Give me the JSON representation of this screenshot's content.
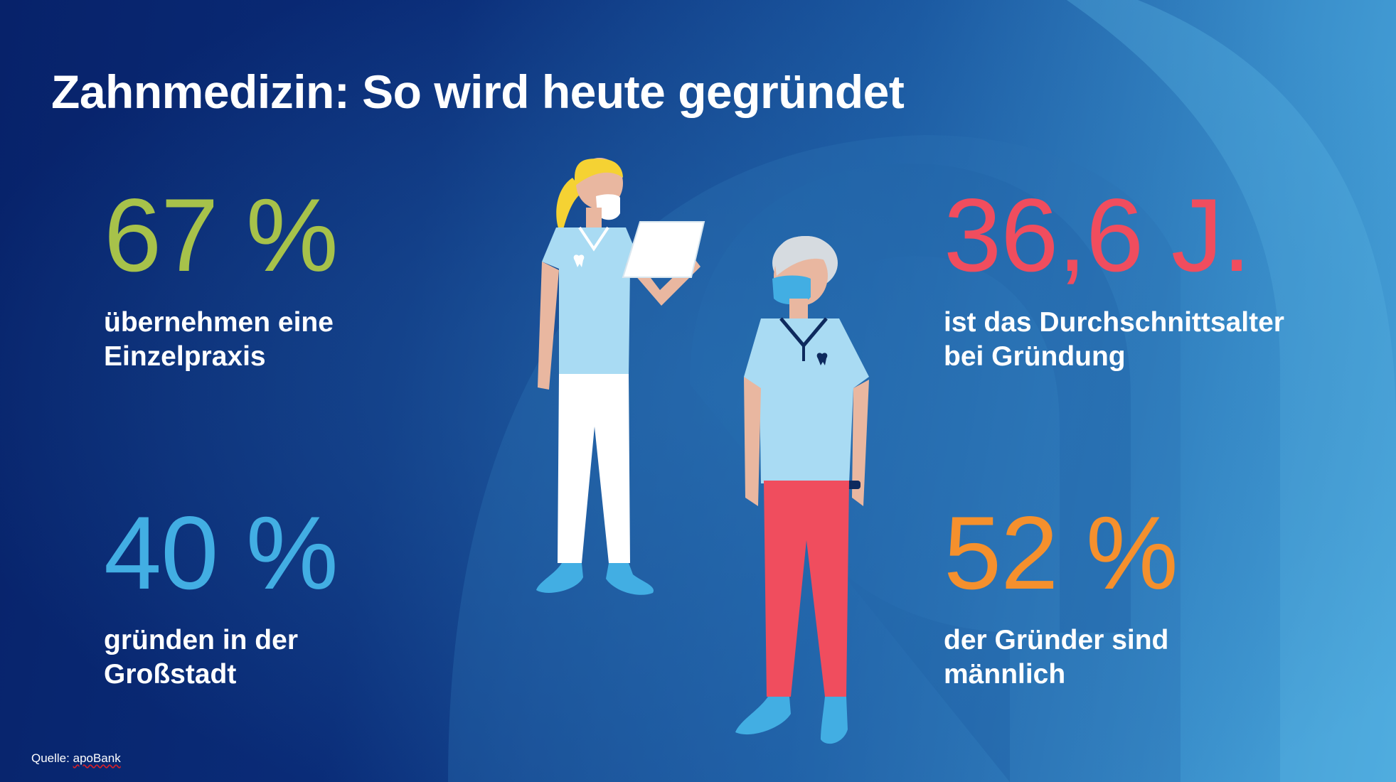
{
  "title": "Zahnmedizin: So wird heute gegründet",
  "colors": {
    "background_dark": "#07226a",
    "background_light": "#4aa7dc",
    "green": "#a7c24a",
    "blue": "#42aee3",
    "red": "#f04d5e",
    "orange": "#f5902d",
    "text": "#ffffff"
  },
  "stats": [
    {
      "value": "67 %",
      "line1": "übernehmen eine",
      "line2": "Einzelpraxis",
      "color": "#a7c24a"
    },
    {
      "value": "40 %",
      "line1": "gründen in der",
      "line2": "Großstadt",
      "color": "#42aee3"
    },
    {
      "value": "36,6 J.",
      "line1": "ist das Durchschnittsalter",
      "line2": "bei Gründung",
      "color": "#f04d5e"
    },
    {
      "value": "52 %",
      "line1": "der Gründer sind",
      "line2": "männlich",
      "color": "#f5902d"
    }
  ],
  "source": {
    "label": "Quelle:",
    "name": "apoBank"
  },
  "illustration": {
    "figures": [
      "female-dentist-figure",
      "male-dentist-figure"
    ],
    "icons": [
      "tooth-icon",
      "clipboard-icon",
      "face-mask-icon",
      "wristwatch-icon"
    ]
  }
}
